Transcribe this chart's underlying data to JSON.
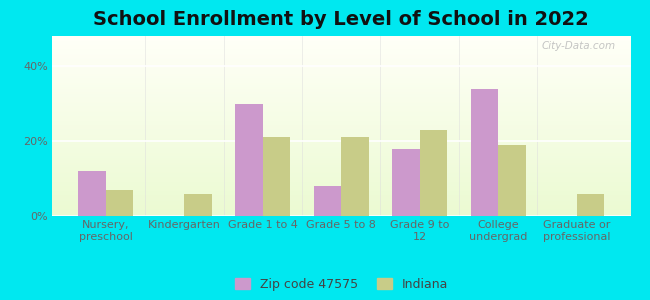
{
  "title": "School Enrollment by Level of School in 2022",
  "categories": [
    "Nursery,\npreschool",
    "Kindergarten",
    "Grade 1 to 4",
    "Grade 5 to 8",
    "Grade 9 to\n12",
    "College\nundergrad",
    "Graduate or\nprofessional"
  ],
  "zip_values": [
    12,
    0,
    30,
    8,
    18,
    34,
    0
  ],
  "indiana_values": [
    7,
    6,
    21,
    21,
    23,
    19,
    6
  ],
  "zip_color": "#cc99cc",
  "indiana_color": "#c8cc88",
  "background_outer": "#00e8f0",
  "ylabel_ticks": [
    "0%",
    "20%",
    "40%"
  ],
  "yticks": [
    0,
    20,
    40
  ],
  "ylim": [
    0,
    48
  ],
  "legend_zip_label": "Zip code 47575",
  "legend_indiana_label": "Indiana",
  "bar_width": 0.35,
  "title_fontsize": 14,
  "tick_fontsize": 8,
  "legend_fontsize": 9,
  "watermark_text": "City-Data.com"
}
